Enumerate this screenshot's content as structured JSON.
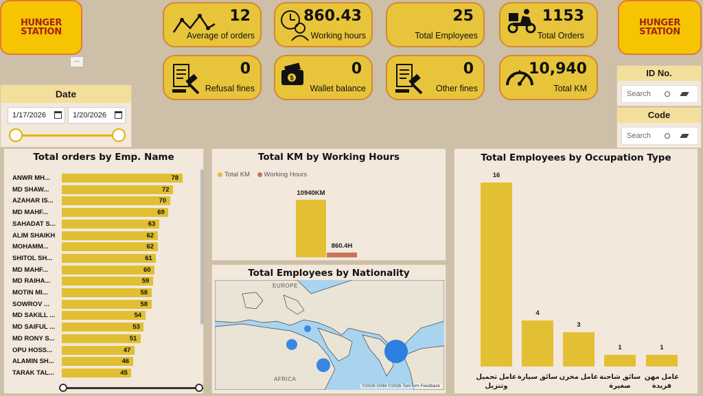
{
  "brand": {
    "line1": "HUNGER",
    "line2": "STATION",
    "more": "..."
  },
  "kpis": [
    {
      "id": "avg-orders",
      "value": "12",
      "label": "Average of orders",
      "icon": "line-chart-icon"
    },
    {
      "id": "working-hours",
      "value": "860.43",
      "label": "Working hours",
      "icon": "worker-clock-icon"
    },
    {
      "id": "total-employees",
      "value": "25",
      "label": "Total Employees",
      "icon": ""
    },
    {
      "id": "total-orders",
      "value": "1153",
      "label": "Total Orders",
      "icon": "delivery-scooter-icon"
    },
    {
      "id": "refusal-fines",
      "value": "0",
      "label": "Refusal fines",
      "icon": "gavel-document-icon"
    },
    {
      "id": "wallet-balance",
      "value": "0",
      "label": "Wallet balance",
      "icon": "wallet-icon"
    },
    {
      "id": "other-fines",
      "value": "0",
      "label": "Other fines",
      "icon": "gavel-document-icon"
    },
    {
      "id": "total-km",
      "value": "10,940",
      "label": "Total KM",
      "icon": "speedometer-icon"
    }
  ],
  "date_filter": {
    "title": "Date",
    "start": "1/17/2026",
    "end": "1/20/2026"
  },
  "id_filter": {
    "title": "ID No.",
    "placeholder": "Search"
  },
  "code_filter": {
    "title": "Code",
    "placeholder": "Search"
  },
  "orders_chart": {
    "title": "Total orders by Emp. Name",
    "chart_data": {
      "type": "bar",
      "orientation": "horizontal",
      "categories": [
        "ANWR MH...",
        "MD SHAW...",
        "AZAHAR IS...",
        "MD MAHF...",
        "SAHADAT S...",
        "ALIM SHAIKH",
        "MOHAMM...",
        "SHITOL SH...",
        "MD MAHF...",
        "MD RAIHA...",
        "MOTIN MI...",
        "SOWROV ...",
        "MD SAKILL ...",
        "MD SAIFUL ...",
        "MD RONY S...",
        "OPU HOSS...",
        "ALAMIN SH...",
        "TARAK TAL..."
      ],
      "values": [
        78,
        72,
        70,
        69,
        63,
        62,
        62,
        61,
        60,
        59,
        58,
        58,
        54,
        53,
        51,
        47,
        46,
        45
      ]
    }
  },
  "km_chart": {
    "title": "Total KM by Working Hours",
    "chart_data": {
      "type": "bar",
      "series": [
        {
          "name": "Total KM",
          "value": 10940,
          "label": "10940KM",
          "color": "#e3c033"
        },
        {
          "name": "Working Hours",
          "value": 860.4,
          "label": "860.4H",
          "color": "#c9735a"
        }
      ]
    }
  },
  "nationality_map": {
    "title": "Total Employees by Nationality",
    "labels": {
      "europe": "EUROPE",
      "africa": "AFRICA"
    },
    "credit": "©2026 OSM  ©2026 TomTom  Feedback"
  },
  "occupation_chart": {
    "title": "Total Employees by Occupation Type",
    "chart_data": {
      "type": "bar",
      "categories": [
        "عامل تحميل وتنزيل",
        "سائق سيارة",
        "عامل مخزن",
        "سائق شاحنة صغيرة",
        "عامل مهن فريدة"
      ],
      "values": [
        16,
        4,
        3,
        1,
        1
      ]
    }
  }
}
